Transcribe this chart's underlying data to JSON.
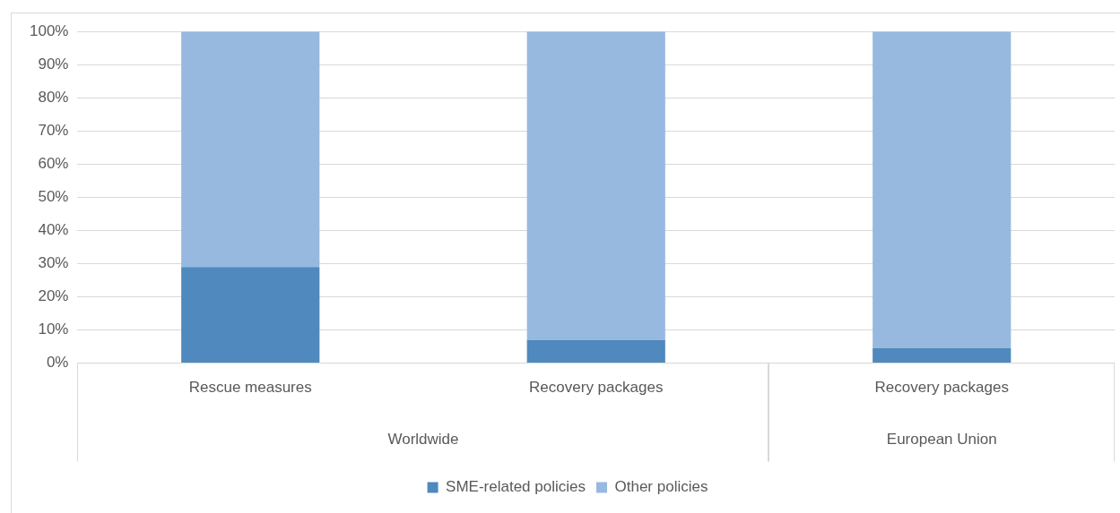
{
  "chart_data": {
    "type": "bar",
    "stacked": true,
    "categories": [
      "Rescue measures",
      "Recovery packages",
      "Recovery packages"
    ],
    "series": [
      {
        "name": "SME-related policies",
        "color": "#4f89bd",
        "values": [
          29,
          7,
          4.5
        ]
      },
      {
        "name": "Other policies",
        "color": "#98b9df",
        "values": [
          71,
          93,
          95.5
        ]
      }
    ],
    "ylim": [
      0,
      100
    ],
    "yticks": [
      {
        "value": 0,
        "label": "0%"
      },
      {
        "value": 10,
        "label": "10%"
      },
      {
        "value": 20,
        "label": "20%"
      },
      {
        "value": 30,
        "label": "30%"
      },
      {
        "value": 40,
        "label": "40%"
      },
      {
        "value": 50,
        "label": "50%"
      },
      {
        "value": 60,
        "label": "60%"
      },
      {
        "value": 70,
        "label": "70%"
      },
      {
        "value": 80,
        "label": "80%"
      },
      {
        "value": 90,
        "label": "90%"
      },
      {
        "value": 100,
        "label": "100%"
      }
    ],
    "grid": "y",
    "legend": "bottom",
    "annotations": [
      "Worldwide",
      "European Union"
    ]
  }
}
